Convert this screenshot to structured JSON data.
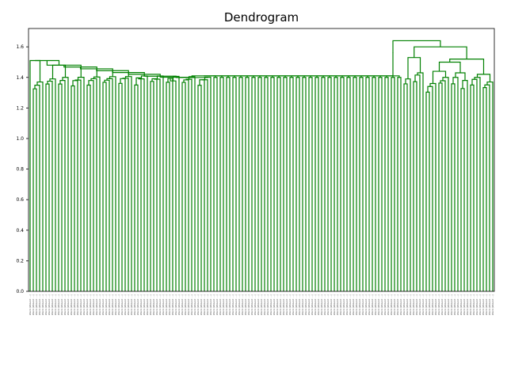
{
  "chart_data": {
    "type": "dendrogram",
    "title": "Dendrogram",
    "xlabel": "",
    "ylabel": "",
    "ylim": [
      0.0,
      1.72
    ],
    "y_ticks": [
      "0.0",
      "0.2",
      "0.4",
      "0.6",
      "0.8",
      "1.0",
      "1.2",
      "1.4",
      "1.6"
    ],
    "leaf_count": 147,
    "leaf_label_text": "Word (Wizard: ...)",
    "line_color": "#008000",
    "grid": false,
    "main_plateau_height": 1.41,
    "merge_heights": {
      "root": 1.64,
      "left_top": 1.56,
      "left_cascade": [
        1.51,
        1.48,
        1.47,
        1.46,
        1.45,
        1.44,
        1.43,
        1.42,
        1.415
      ],
      "right_top": 1.6,
      "right_subclusters": [
        1.53,
        1.5,
        1.44,
        1.43,
        1.42
      ]
    }
  }
}
